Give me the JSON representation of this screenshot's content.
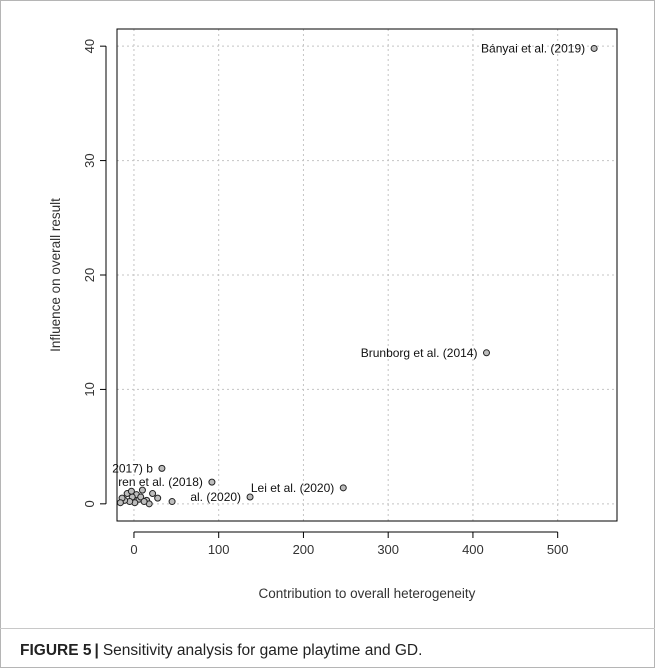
{
  "caption": {
    "label": "FIGURE 5",
    "text": "Sensitivity analysis for game playtime and GD."
  },
  "chart_data": {
    "type": "scatter",
    "title": "",
    "xlabel": "Contribution to overall heterogeneity",
    "ylabel": "Influence on overall result",
    "xlim": [
      -20,
      570
    ],
    "ylim": [
      -1.5,
      41.5
    ],
    "xticks": [
      0,
      100,
      200,
      300,
      400,
      500
    ],
    "yticks": [
      0,
      10,
      20,
      30,
      40
    ],
    "grid": true,
    "series": [
      {
        "points": [
          {
            "x": 543,
            "y": 39.8,
            "label": "Bányai et al. (2019)"
          },
          {
            "x": 416,
            "y": 13.2,
            "label": "Brunborg et al. (2014)"
          },
          {
            "x": 247,
            "y": 1.4,
            "label": "Lei et al. (2020)"
          },
          {
            "x": 137,
            "y": 0.6,
            "label": "al. (2020)"
          },
          {
            "x": 92,
            "y": 1.9,
            "label": "ren et al. (2018)"
          },
          {
            "x": 33,
            "y": 3.1,
            "label": "2017) b"
          },
          {
            "x": 45,
            "y": 0.2,
            "label": ""
          },
          {
            "x": 28,
            "y": 0.5,
            "label": ""
          },
          {
            "x": 22,
            "y": 0.9,
            "label": ""
          },
          {
            "x": 15,
            "y": 0.3,
            "label": ""
          },
          {
            "x": 10,
            "y": 1.2,
            "label": ""
          },
          {
            "x": 6,
            "y": 0.4,
            "label": ""
          },
          {
            "x": 3,
            "y": 0.8,
            "label": ""
          },
          {
            "x": 1,
            "y": 0.1,
            "label": ""
          },
          {
            "x": -2,
            "y": 0.6,
            "label": ""
          },
          {
            "x": -5,
            "y": 0.2,
            "label": ""
          },
          {
            "x": -8,
            "y": 0.9,
            "label": ""
          },
          {
            "x": -11,
            "y": 0.3,
            "label": ""
          },
          {
            "x": -14,
            "y": 0.5,
            "label": ""
          },
          {
            "x": -16,
            "y": 0.1,
            "label": ""
          },
          {
            "x": 18,
            "y": 0.0,
            "label": ""
          },
          {
            "x": 8,
            "y": 0.6,
            "label": ""
          },
          {
            "x": -3,
            "y": 1.1,
            "label": ""
          },
          {
            "x": 12,
            "y": 0.2,
            "label": ""
          }
        ]
      }
    ]
  }
}
